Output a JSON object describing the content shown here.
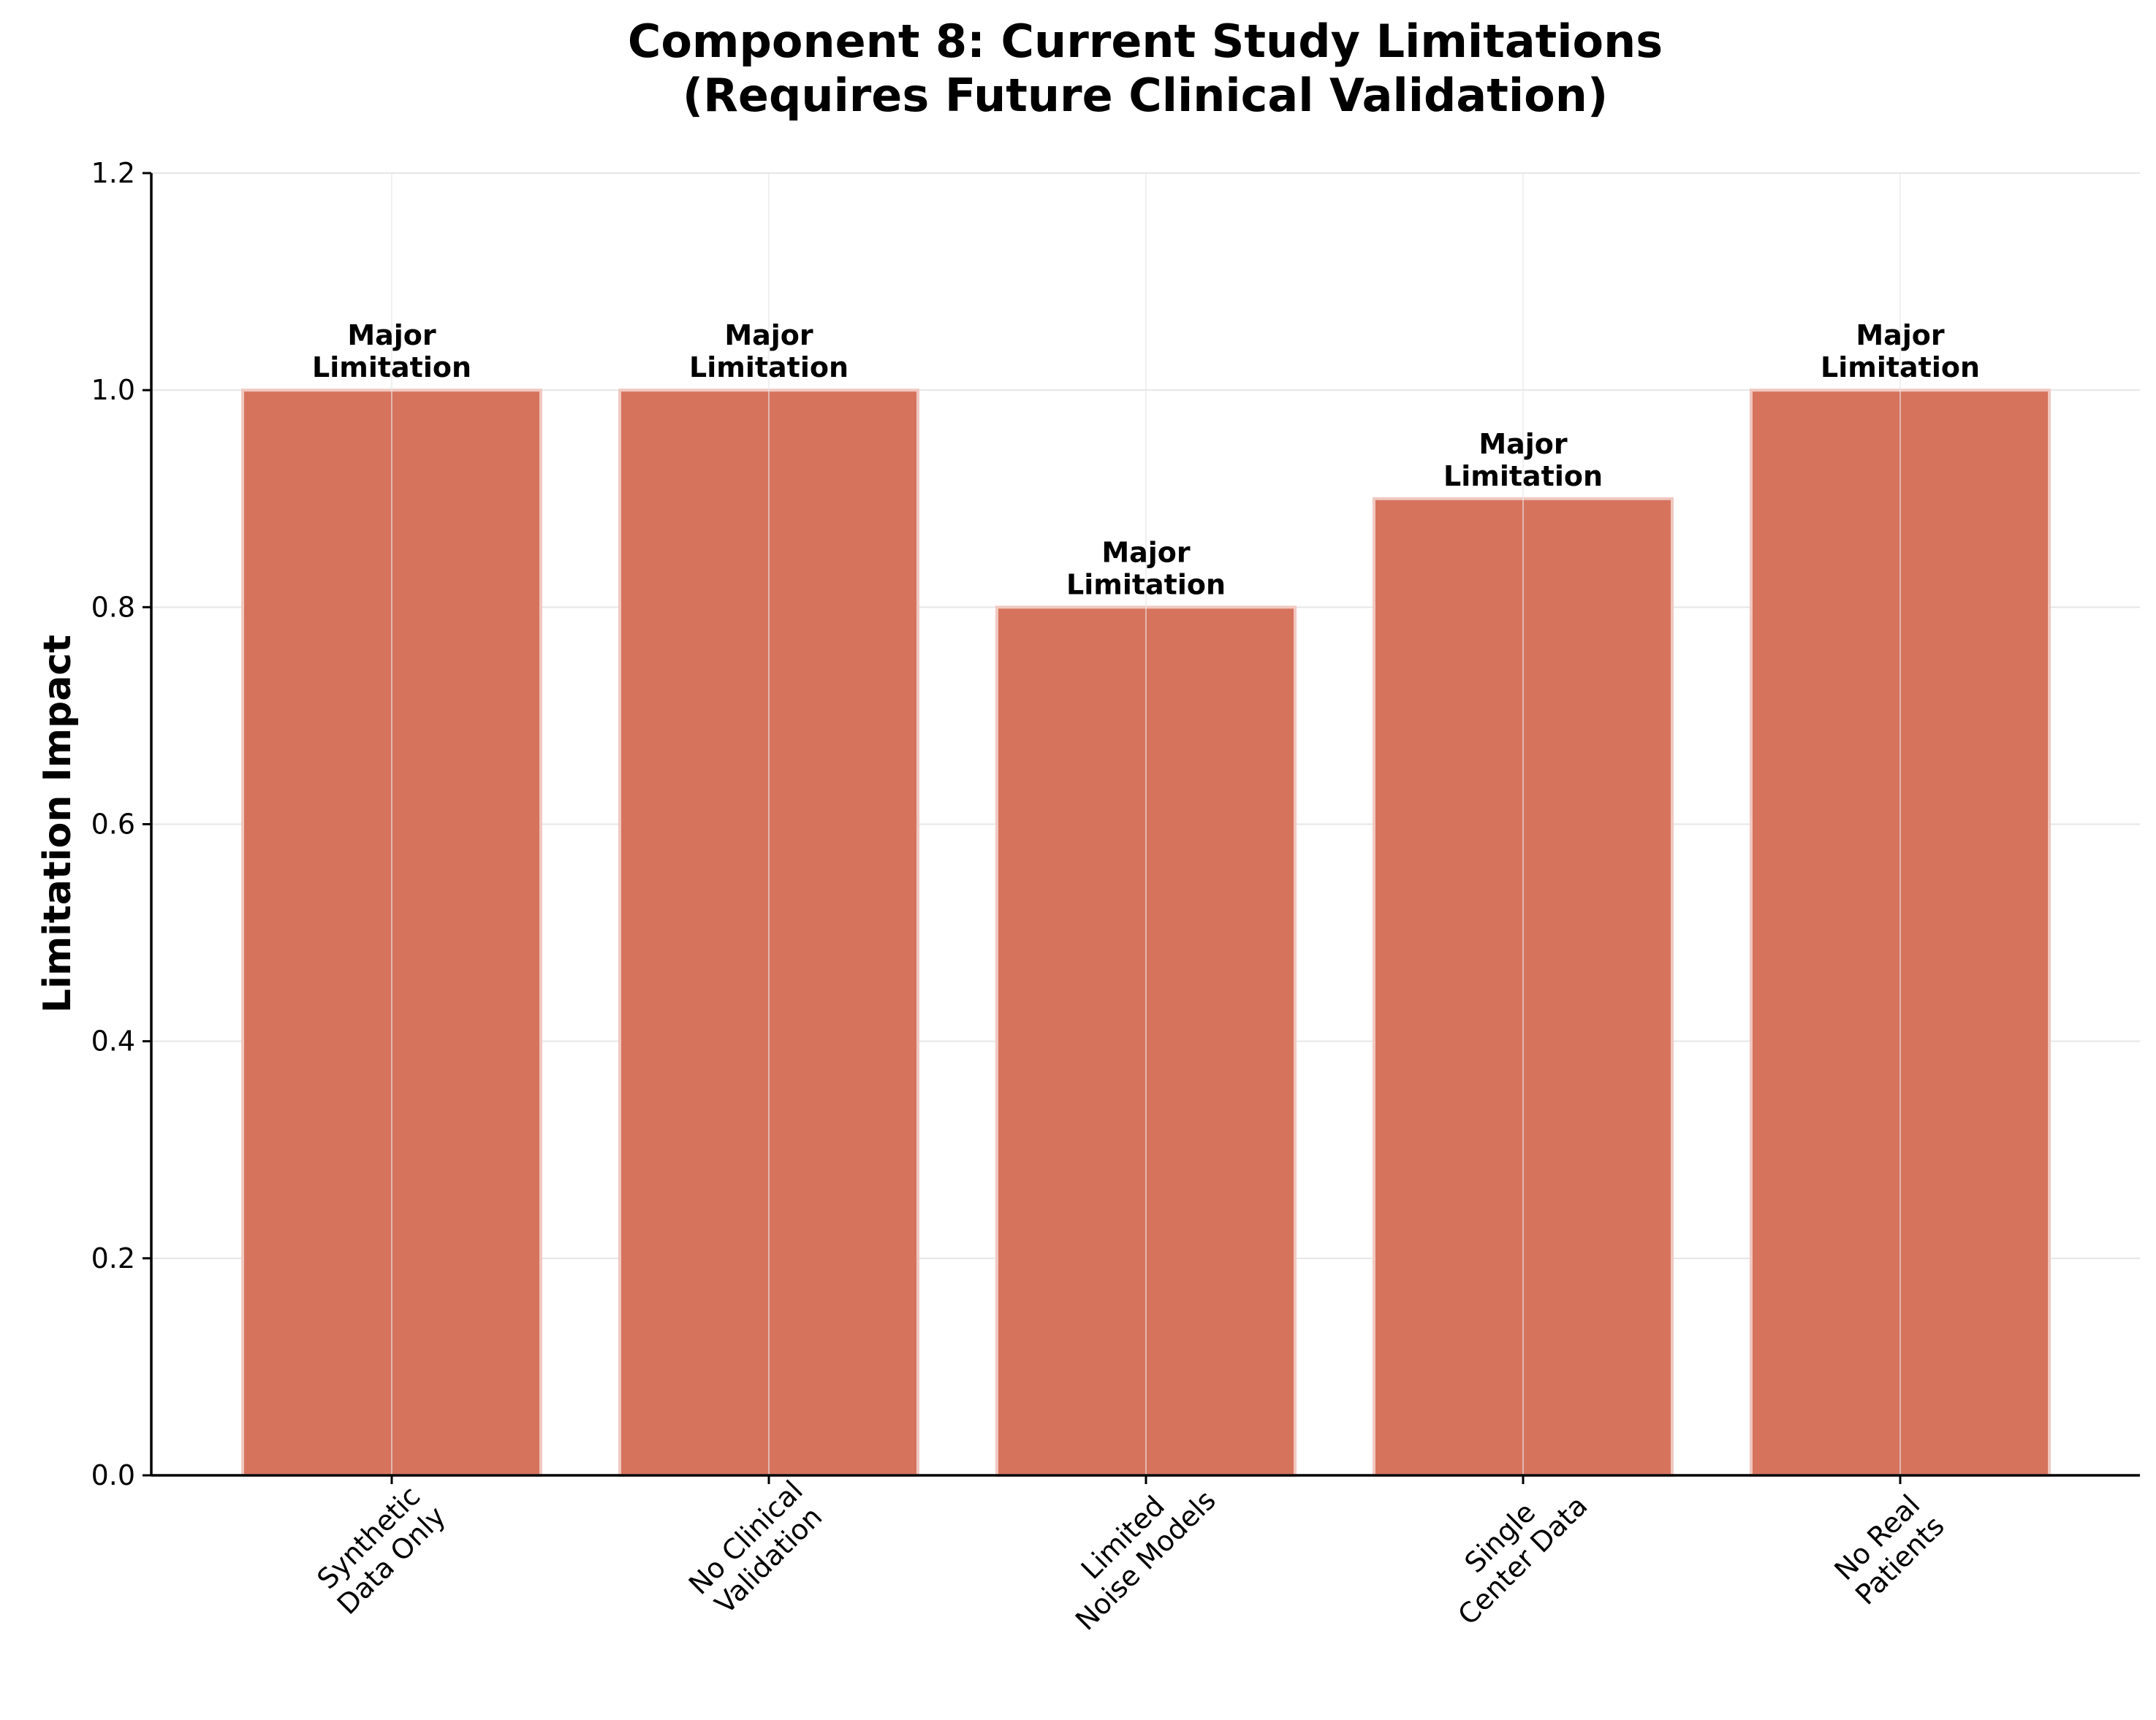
{
  "chart_data": {
    "type": "bar",
    "title": [
      "Component 8: Current Study Limitations",
      "(Requires Future Clinical Validation)"
    ],
    "xlabel": "",
    "ylabel": "Limitation Impact",
    "categories": [
      [
        "Synthetic",
        "Data Only"
      ],
      [
        "No Clinical",
        "Validation"
      ],
      [
        "Limited",
        "Noise Models"
      ],
      [
        "Single",
        "Center Data"
      ],
      [
        "No Real",
        "Patients"
      ]
    ],
    "values": [
      1.0,
      1.0,
      0.8,
      0.9,
      1.0
    ],
    "data_labels": [
      [
        "Major",
        "Limitation"
      ],
      [
        "Major",
        "Limitation"
      ],
      [
        "Major",
        "Limitation"
      ],
      [
        "Major",
        "Limitation"
      ],
      [
        "Major",
        "Limitation"
      ]
    ],
    "ylim": [
      0,
      1.2
    ],
    "yticks": [
      "0.0",
      "0.2",
      "0.4",
      "0.6",
      "0.8",
      "1.0",
      "1.2"
    ],
    "grid": true,
    "legend": "none",
    "colors": {
      "bar": "#d6735d",
      "bar_edge": "#f0c8c0",
      "grid": "#e6e6e6",
      "axis": "#000000"
    }
  }
}
